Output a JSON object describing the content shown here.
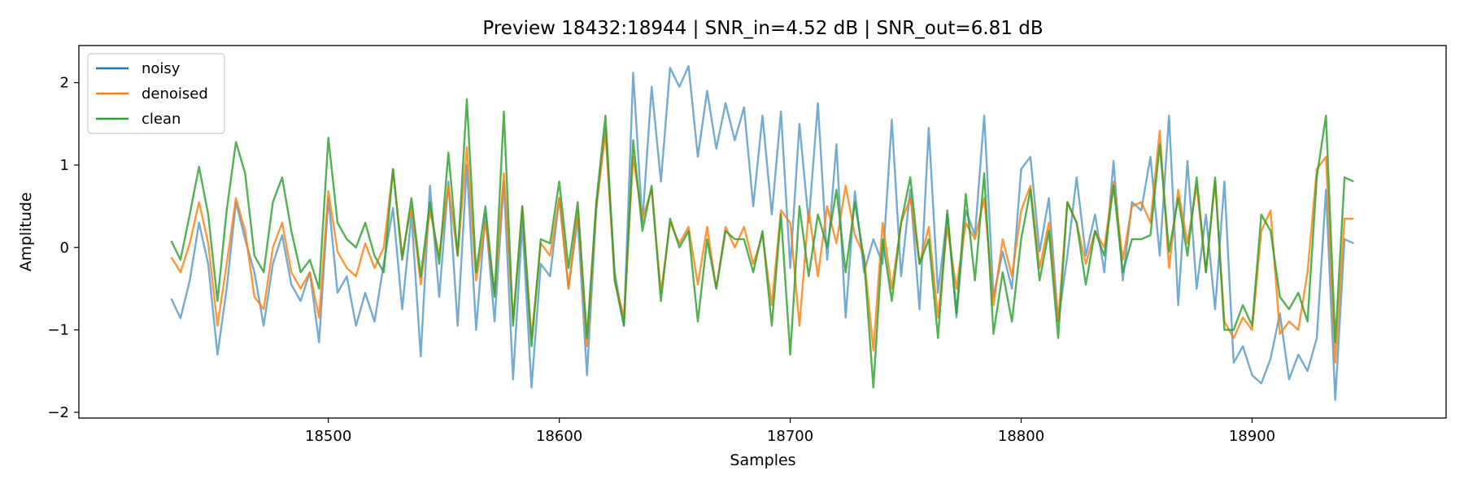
{
  "chart_data": {
    "type": "line",
    "title": "Preview 18432:18944 | SNR_in=4.52 dB | SNR_out=6.81 dB",
    "xlabel": "Samples",
    "ylabel": "Amplitude",
    "xlim": [
      18392,
      18984
    ],
    "ylim": [
      -2.07,
      2.45
    ],
    "xticks": [
      18500,
      18600,
      18700,
      18800,
      18900
    ],
    "xtick_labels": [
      "18500",
      "18600",
      "18700",
      "18800",
      "18900"
    ],
    "yticks": [
      -2,
      -1,
      0,
      1,
      2
    ],
    "ytick_labels": [
      "−2",
      "−1",
      "0",
      "1",
      "2"
    ],
    "grid": false,
    "legend_position": "top-left",
    "colors": {
      "noisy": "#1f77b4",
      "denoised": "#ff7f0e",
      "clean": "#2ca02c"
    },
    "series": [
      {
        "name": "noisy",
        "color": "#1f77b4",
        "x": [
          18432,
          18436,
          18440,
          18444,
          18448,
          18452,
          18456,
          18460,
          18464,
          18468,
          18472,
          18476,
          18480,
          18484,
          18488,
          18492,
          18496,
          18500,
          18504,
          18508,
          18512,
          18516,
          18520,
          18524,
          18528,
          18532,
          18536,
          18540,
          18544,
          18548,
          18552,
          18556,
          18560,
          18564,
          18568,
          18572,
          18576,
          18580,
          18584,
          18588,
          18592,
          18596,
          18600,
          18604,
          18608,
          18612,
          18616,
          18620,
          18624,
          18628,
          18632,
          18636,
          18640,
          18644,
          18648,
          18652,
          18656,
          18660,
          18664,
          18668,
          18672,
          18676,
          18680,
          18684,
          18688,
          18692,
          18696,
          18700,
          18704,
          18708,
          18712,
          18716,
          18720,
          18724,
          18728,
          18732,
          18736,
          18740,
          18744,
          18748,
          18752,
          18756,
          18760,
          18764,
          18768,
          18772,
          18776,
          18780,
          18784,
          18788,
          18792,
          18796,
          18800,
          18804,
          18808,
          18812,
          18816,
          18820,
          18824,
          18828,
          18832,
          18836,
          18840,
          18844,
          18848,
          18852,
          18856,
          18860,
          18864,
          18868,
          18872,
          18876,
          18880,
          18884,
          18888,
          18892,
          18896,
          18900,
          18904,
          18908,
          18912,
          18916,
          18920,
          18924,
          18928,
          18932,
          18936,
          18940,
          18944
        ],
        "y": [
          -0.62,
          -0.86,
          -0.4,
          0.3,
          -0.2,
          -1.3,
          -0.5,
          0.55,
          0.1,
          -0.3,
          -0.95,
          -0.2,
          0.15,
          -0.45,
          -0.65,
          -0.3,
          -1.15,
          0.6,
          -0.55,
          -0.35,
          -0.95,
          -0.55,
          -0.9,
          -0.2,
          0.48,
          -0.75,
          0.4,
          -1.32,
          0.75,
          -0.6,
          0.8,
          -0.95,
          1.0,
          -1.0,
          0.4,
          -0.9,
          0.8,
          -1.6,
          0.3,
          -1.7,
          -0.2,
          -0.35,
          0.6,
          -0.5,
          0.35,
          -1.55,
          0.45,
          1.45,
          -0.3,
          -0.95,
          2.12,
          0.3,
          1.95,
          0.8,
          2.18,
          1.95,
          2.2,
          1.1,
          1.9,
          1.2,
          1.75,
          1.3,
          1.7,
          0.5,
          1.6,
          0.4,
          1.65,
          -0.25,
          1.5,
          0.3,
          1.75,
          -0.15,
          1.25,
          -0.85,
          0.68,
          -0.3,
          0.1,
          -0.2,
          1.55,
          -0.35,
          0.7,
          -0.75,
          1.45,
          -0.55,
          0.4,
          -0.85,
          0.45,
          0.15,
          1.6,
          -0.6,
          -0.05,
          -0.5,
          0.95,
          1.1,
          -0.05,
          0.6,
          -0.9,
          -0.1,
          0.85,
          -0.1,
          0.4,
          -0.3,
          1.05,
          -0.4,
          0.55,
          0.45,
          1.1,
          -0.1,
          1.6,
          -0.7,
          1.05,
          -0.5,
          0.4,
          -0.75,
          0.8,
          -1.4,
          -1.2,
          -1.55,
          -1.65,
          -1.35,
          -0.8,
          -1.6,
          -1.3,
          -1.5,
          -1.1,
          0.7,
          -1.85,
          0.1,
          0.05
        ]
      },
      {
        "name": "denoised",
        "color": "#ff7f0e",
        "x": [
          18432,
          18436,
          18440,
          18444,
          18448,
          18452,
          18456,
          18460,
          18464,
          18468,
          18472,
          18476,
          18480,
          18484,
          18488,
          18492,
          18496,
          18500,
          18504,
          18508,
          18512,
          18516,
          18520,
          18524,
          18528,
          18532,
          18536,
          18540,
          18544,
          18548,
          18552,
          18556,
          18560,
          18564,
          18568,
          18572,
          18576,
          18580,
          18584,
          18588,
          18592,
          18596,
          18600,
          18604,
          18608,
          18612,
          18616,
          18620,
          18624,
          18628,
          18632,
          18636,
          18640,
          18644,
          18648,
          18652,
          18656,
          18660,
          18664,
          18668,
          18672,
          18676,
          18680,
          18684,
          18688,
          18692,
          18696,
          18700,
          18704,
          18708,
          18712,
          18716,
          18720,
          18724,
          18728,
          18732,
          18736,
          18740,
          18744,
          18748,
          18752,
          18756,
          18760,
          18764,
          18768,
          18772,
          18776,
          18780,
          18784,
          18788,
          18792,
          18796,
          18800,
          18804,
          18808,
          18812,
          18816,
          18820,
          18824,
          18828,
          18832,
          18836,
          18840,
          18844,
          18848,
          18852,
          18856,
          18860,
          18864,
          18868,
          18872,
          18876,
          18880,
          18884,
          18888,
          18892,
          18896,
          18900,
          18904,
          18908,
          18912,
          18916,
          18920,
          18924,
          18928,
          18932,
          18936,
          18940,
          18944
        ],
        "y": [
          -0.12,
          -0.3,
          0.05,
          0.55,
          0.05,
          -0.95,
          -0.2,
          0.6,
          0.2,
          -0.6,
          -0.75,
          0.0,
          0.3,
          -0.3,
          -0.5,
          -0.3,
          -0.85,
          0.68,
          -0.05,
          -0.25,
          -0.35,
          0.05,
          -0.25,
          0.0,
          0.95,
          -0.1,
          0.5,
          -0.45,
          0.45,
          -0.1,
          0.75,
          -0.1,
          1.22,
          -0.4,
          0.3,
          -0.55,
          0.9,
          -0.9,
          0.5,
          -1.1,
          0.05,
          -0.1,
          0.6,
          -0.5,
          0.45,
          -1.2,
          0.5,
          1.4,
          -0.4,
          -0.85,
          1.1,
          0.35,
          0.7,
          -0.55,
          0.3,
          0.05,
          0.25,
          -0.45,
          0.25,
          -0.5,
          0.25,
          0.0,
          0.25,
          -0.2,
          0.15,
          -0.7,
          0.45,
          0.3,
          -0.95,
          0.45,
          -0.35,
          0.5,
          0.05,
          0.75,
          0.15,
          -0.1,
          -1.25,
          0.3,
          -0.5,
          0.3,
          0.6,
          -0.2,
          0.25,
          -0.85,
          0.25,
          -0.5,
          0.3,
          0.1,
          0.6,
          -0.7,
          0.1,
          -0.35,
          0.45,
          0.75,
          -0.25,
          0.3,
          -0.9,
          0.55,
          0.3,
          -0.2,
          0.2,
          0.0,
          0.8,
          -0.15,
          0.5,
          0.55,
          0.3,
          1.42,
          -0.25,
          0.7,
          0.05,
          0.75,
          -0.3,
          0.8,
          -0.9,
          -1.1,
          -0.85,
          -1.0,
          0.2,
          0.45,
          -1.05,
          -0.9,
          -1.0,
          -0.3,
          0.95,
          1.1,
          -1.4,
          0.35,
          0.35
        ]
      },
      {
        "name": "clean",
        "color": "#2ca02c",
        "x": [
          18432,
          18436,
          18440,
          18444,
          18448,
          18452,
          18456,
          18460,
          18464,
          18468,
          18472,
          18476,
          18480,
          18484,
          18488,
          18492,
          18496,
          18500,
          18504,
          18508,
          18512,
          18516,
          18520,
          18524,
          18528,
          18532,
          18536,
          18540,
          18544,
          18548,
          18552,
          18556,
          18560,
          18564,
          18568,
          18572,
          18576,
          18580,
          18584,
          18588,
          18592,
          18596,
          18600,
          18604,
          18608,
          18612,
          18616,
          18620,
          18624,
          18628,
          18632,
          18636,
          18640,
          18644,
          18648,
          18652,
          18656,
          18660,
          18664,
          18668,
          18672,
          18676,
          18680,
          18684,
          18688,
          18692,
          18696,
          18700,
          18704,
          18708,
          18712,
          18716,
          18720,
          18724,
          18728,
          18732,
          18736,
          18740,
          18744,
          18748,
          18752,
          18756,
          18760,
          18764,
          18768,
          18772,
          18776,
          18780,
          18784,
          18788,
          18792,
          18796,
          18800,
          18804,
          18808,
          18812,
          18816,
          18820,
          18824,
          18828,
          18832,
          18836,
          18840,
          18844,
          18848,
          18852,
          18856,
          18860,
          18864,
          18868,
          18872,
          18876,
          18880,
          18884,
          18888,
          18892,
          18896,
          18900,
          18904,
          18908,
          18912,
          18916,
          18920,
          18924,
          18928,
          18932,
          18936,
          18940,
          18944
        ],
        "y": [
          0.08,
          -0.15,
          0.4,
          0.98,
          0.4,
          -0.65,
          0.45,
          1.28,
          0.9,
          -0.1,
          -0.3,
          0.55,
          0.85,
          0.2,
          -0.3,
          -0.15,
          -0.5,
          1.33,
          0.3,
          0.1,
          0.0,
          0.3,
          -0.1,
          -0.3,
          0.95,
          -0.15,
          0.6,
          -0.35,
          0.55,
          -0.2,
          1.15,
          -0.1,
          1.8,
          -0.3,
          0.5,
          -0.6,
          1.65,
          -0.95,
          0.5,
          -1.2,
          0.1,
          0.05,
          0.8,
          -0.25,
          0.55,
          -1.1,
          0.55,
          1.6,
          -0.4,
          -0.95,
          1.3,
          0.2,
          0.75,
          -0.65,
          0.35,
          0.0,
          0.2,
          -0.9,
          0.1,
          -0.5,
          0.2,
          0.1,
          0.1,
          -0.3,
          0.2,
          -0.95,
          0.4,
          -1.3,
          0.5,
          -0.35,
          0.4,
          0.0,
          0.7,
          -0.3,
          0.55,
          -0.15,
          -1.7,
          0.1,
          -0.65,
          0.3,
          0.85,
          -0.2,
          0.1,
          -1.1,
          0.45,
          -0.8,
          0.65,
          -0.4,
          0.9,
          -1.05,
          -0.3,
          -0.9,
          0.1,
          0.7,
          -0.4,
          0.2,
          -1.1,
          0.55,
          0.3,
          -0.45,
          0.2,
          -0.1,
          0.75,
          -0.3,
          0.1,
          0.1,
          0.15,
          1.25,
          -0.05,
          0.6,
          -0.1,
          0.85,
          -0.3,
          0.85,
          -1.0,
          -1.0,
          -0.7,
          -0.95,
          0.4,
          0.2,
          -0.6,
          -0.75,
          -0.55,
          -0.9,
          0.85,
          1.6,
          -1.15,
          0.85,
          0.8
        ]
      }
    ]
  }
}
